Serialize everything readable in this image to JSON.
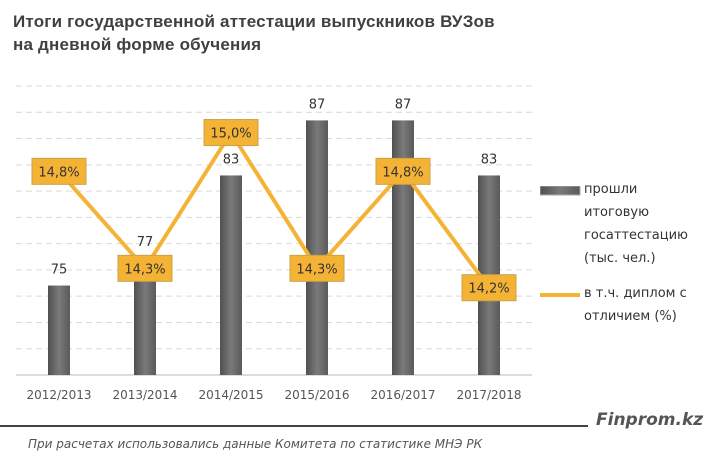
{
  "title_lines": [
    "Итоги государственной аттестации выпускников ВУЗов",
    "на дневной форме обучения"
  ],
  "chart_data": {
    "type": "bar",
    "title": "Итоги государственной аттестации выпускников ВУЗов на дневной форме обучения",
    "categories": [
      "2012/2013",
      "2013/2014",
      "2014/2015",
      "2015/2016",
      "2016/2017",
      "2017/2018"
    ],
    "series": [
      {
        "name": "прошли итоговую госаттестацию (тыс. чел.)",
        "type": "bar",
        "values": [
          75,
          77,
          83,
          87,
          87,
          83
        ],
        "labels": [
          "75",
          "77",
          "83",
          "87",
          "87",
          "83"
        ],
        "color": "#6b6b6b",
        "ylim": [
          68.5,
          89.5
        ]
      },
      {
        "name": "в т.ч. диплом с отличием (%)",
        "type": "line",
        "values": [
          14.8,
          14.3,
          15.0,
          14.3,
          14.8,
          14.2
        ],
        "labels": [
          "14,8%",
          "14,3%",
          "15,0%",
          "14,3%",
          "14,8%",
          "14,2%"
        ],
        "color": "#f5b335",
        "ylim": [
          13.75,
          15.24
        ]
      }
    ],
    "grid": true,
    "legend_position": "right",
    "legend": [
      {
        "lines": [
          "прошли",
          "итоговую",
          "госаттестацию",
          "(тыс. чел.)"
        ]
      },
      {
        "lines": [
          "в т.ч. диплом с",
          "отличием (%)"
        ]
      }
    ]
  },
  "brand": "Finprom.kz",
  "source": "При расчетах использовались данные Комитета по статистике МНЭ РК"
}
